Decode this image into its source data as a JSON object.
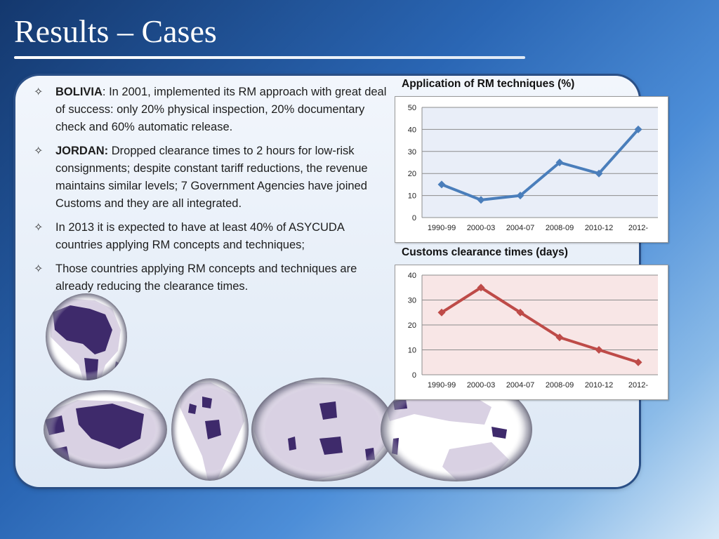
{
  "slide": {
    "title": "Results – Cases",
    "bullets": [
      {
        "marker": "✧",
        "lead": "BOLIVIA",
        "text": ": In 2001, implemented its RM approach with great deal of success: only 20% physical inspection, 20% documentary check and 60% automatic release."
      },
      {
        "marker": "✧",
        "lead": "JORDAN:",
        "text": " Dropped clearance times to 2 hours for low-risk consignments; despite constant tariff reductions, the revenue maintains similar levels; 7 Government Agencies have joined Customs and they are all integrated."
      },
      {
        "marker": "✧",
        "lead": "",
        "text": "In 2013 it is expected to have at least 40% of ASYCUDA countries applying RM concepts and techniques;"
      },
      {
        "marker": "✧",
        "lead": "",
        "text": "Those countries applying RM concepts and techniques are already reducing the clearance times."
      }
    ]
  },
  "chart_data": [
    {
      "type": "line",
      "title": "Application of RM techniques (%)",
      "categories": [
        "1990-99",
        "2000-03",
        "2004-07",
        "2008-09",
        "2010-12",
        "2012-"
      ],
      "series": [
        {
          "values": [
            15,
            8,
            10,
            25,
            20,
            40
          ]
        }
      ],
      "ylim": [
        0,
        50
      ],
      "yticks": [
        0,
        10,
        20,
        30,
        40,
        50
      ],
      "grid": true,
      "legend": "none",
      "line_color": "#4a7ebb",
      "plot_bg": "#e9eef8"
    },
    {
      "type": "line",
      "title": "Customs clearance times (days)",
      "categories": [
        "1990-99",
        "2000-03",
        "2004-07",
        "2008-09",
        "2010-12",
        "2012-"
      ],
      "series": [
        {
          "values": [
            25,
            35,
            25,
            15,
            10,
            5
          ]
        }
      ],
      "ylim": [
        0,
        40
      ],
      "yticks": [
        0,
        10,
        20,
        30,
        40
      ],
      "grid": true,
      "legend": "none",
      "line_color": "#be4b48",
      "plot_bg": "#f8e6e6"
    }
  ],
  "colors": {
    "globe_land_light": "#d9d1e3",
    "globe_land_dark": "#3e2a6b",
    "globe_ocean": "#ffffff",
    "globe_ring": "#6e6e80"
  },
  "icons": {
    "bullet": "four-point-star-outline-icon",
    "globes": "world-map-region-icons"
  }
}
